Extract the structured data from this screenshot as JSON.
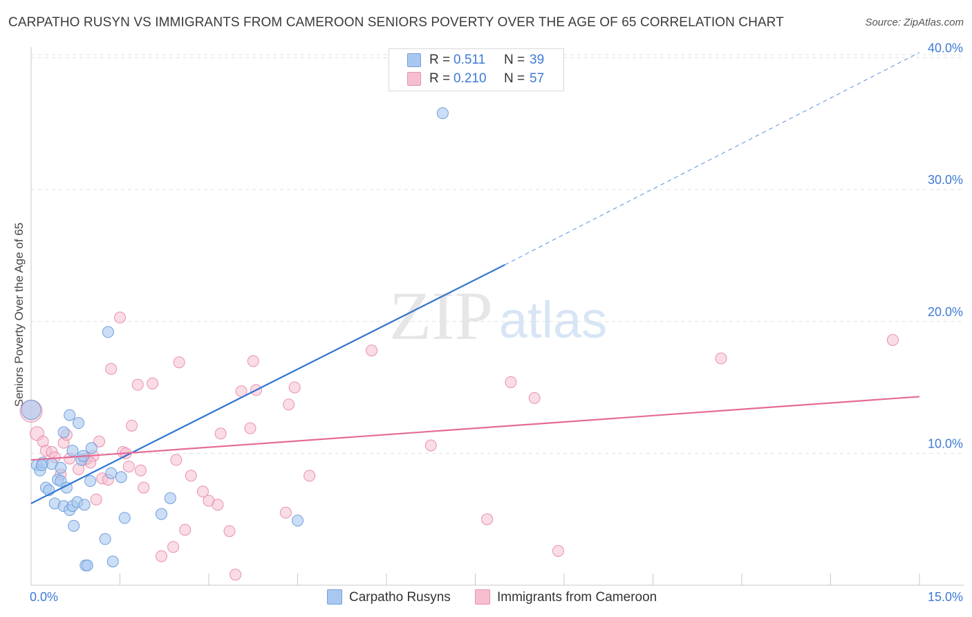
{
  "header": {
    "title": "CARPATHO RUSYN VS IMMIGRANTS FROM CAMEROON SENIORS POVERTY OVER THE AGE OF 65 CORRELATION CHART",
    "source": "Source: ZipAtlas.com"
  },
  "watermark": {
    "zip": "ZIP",
    "atlas": "atlas"
  },
  "legend": {
    "series1": {
      "r_label": "R =",
      "r_value": "0.511",
      "n_label": "N =",
      "n_value": "39"
    },
    "series2": {
      "r_label": "R =",
      "r_value": "0.210",
      "n_label": "N =",
      "n_value": "57"
    }
  },
  "bottom_legend": {
    "series1": "Carpatho Rusyns",
    "series2": "Immigrants from Cameroon"
  },
  "colors": {
    "blue_fill": "#a9c8f0",
    "blue_stroke": "#6f9fdb",
    "blue_line": "#2f74d0",
    "pink_fill": "#f6bfd0",
    "pink_stroke": "#e890ae",
    "pink_line": "#e46b96",
    "tick_label": "#3d7ad6",
    "grid": "#e0e0e0"
  },
  "chart_data": {
    "type": "scatter",
    "title": "CARPATHO RUSYN VS IMMIGRANTS FROM CAMEROON SENIORS POVERTY OVER THE AGE OF 65 CORRELATION CHART",
    "xlabel": "",
    "ylabel": "Seniors Poverty Over the Age of 65",
    "xlim": [
      0,
      15
    ],
    "ylim": [
      0,
      40.5
    ],
    "x_tick_labels": [
      {
        "value": 0,
        "label": "0.0%"
      },
      {
        "value": 15,
        "label": "15.0%"
      }
    ],
    "y_tick_labels": [
      {
        "value": 10,
        "label": "10.0%"
      },
      {
        "value": 20,
        "label": "20.0%"
      },
      {
        "value": 30,
        "label": "30.0%"
      },
      {
        "value": 40,
        "label": "40.0%"
      }
    ],
    "x_minor_ticks": [
      0,
      1.5,
      3,
      4.5,
      6,
      7.5,
      9,
      10.5,
      12,
      13.5,
      15
    ],
    "grid": true,
    "series": [
      {
        "name": "Carpatho Rusyns",
        "r": 0.511,
        "n": 39,
        "trend": {
          "x0": 0,
          "y0": 6.2,
          "x1": 8.0,
          "y1": 24.3,
          "dash_to_x": 15,
          "dash_to_y": 40.4
        },
        "points": [
          [
            0.0,
            13.3,
            14
          ],
          [
            0.1,
            9.1,
            8
          ],
          [
            0.15,
            8.7,
            8
          ],
          [
            0.2,
            9.3,
            8
          ],
          [
            0.25,
            7.4,
            8
          ],
          [
            0.3,
            7.2,
            8
          ],
          [
            0.35,
            9.2,
            8
          ],
          [
            0.4,
            6.2,
            8
          ],
          [
            0.45,
            8.0,
            8
          ],
          [
            0.5,
            8.9,
            8
          ],
          [
            0.5,
            7.9,
            8
          ],
          [
            0.55,
            6.0,
            8
          ],
          [
            0.55,
            11.6,
            8
          ],
          [
            0.6,
            7.4,
            8
          ],
          [
            0.65,
            5.7,
            8
          ],
          [
            0.65,
            12.9,
            8
          ],
          [
            0.7,
            10.2,
            8
          ],
          [
            0.7,
            6.0,
            8
          ],
          [
            0.72,
            4.5,
            8
          ],
          [
            0.78,
            6.3,
            8
          ],
          [
            0.8,
            12.3,
            8
          ],
          [
            0.85,
            9.5,
            8
          ],
          [
            0.88,
            9.8,
            8
          ],
          [
            0.9,
            6.1,
            8
          ],
          [
            0.92,
            1.5,
            8
          ],
          [
            0.95,
            1.5,
            8
          ],
          [
            1.0,
            7.9,
            8
          ],
          [
            1.02,
            10.4,
            8
          ],
          [
            1.25,
            3.5,
            8
          ],
          [
            1.3,
            19.2,
            8
          ],
          [
            1.35,
            8.5,
            8
          ],
          [
            1.38,
            1.8,
            8
          ],
          [
            1.52,
            8.2,
            8
          ],
          [
            1.58,
            5.1,
            8
          ],
          [
            2.2,
            5.4,
            8
          ],
          [
            2.35,
            6.6,
            8
          ],
          [
            4.5,
            4.9,
            8
          ],
          [
            6.95,
            35.8,
            8
          ],
          [
            0.18,
            9.1,
            8
          ]
        ]
      },
      {
        "name": "Immigrants from Cameroon",
        "r": 0.21,
        "n": 57,
        "trend": {
          "x0": 0,
          "y0": 9.5,
          "x1": 15,
          "y1": 14.3
        },
        "points": [
          [
            0.0,
            13.2,
            16
          ],
          [
            0.1,
            11.5,
            10
          ],
          [
            0.2,
            10.9,
            8
          ],
          [
            0.25,
            10.2,
            8
          ],
          [
            0.35,
            10.1,
            8
          ],
          [
            0.4,
            9.7,
            8
          ],
          [
            0.5,
            8.4,
            8
          ],
          [
            0.55,
            10.8,
            8
          ],
          [
            0.6,
            11.4,
            8
          ],
          [
            0.65,
            9.6,
            8
          ],
          [
            0.8,
            8.8,
            8
          ],
          [
            0.9,
            9.5,
            8
          ],
          [
            0.95,
            9.6,
            8
          ],
          [
            1.05,
            9.8,
            8
          ],
          [
            1.1,
            6.5,
            8
          ],
          [
            1.15,
            10.9,
            8
          ],
          [
            1.2,
            8.1,
            8
          ],
          [
            1.3,
            8.0,
            8
          ],
          [
            1.35,
            16.4,
            8
          ],
          [
            1.5,
            20.3,
            8
          ],
          [
            1.55,
            10.1,
            8
          ],
          [
            1.6,
            10.0,
            8
          ],
          [
            1.65,
            9.0,
            8
          ],
          [
            1.7,
            12.1,
            8
          ],
          [
            1.8,
            15.2,
            8
          ],
          [
            1.85,
            8.7,
            8
          ],
          [
            1.9,
            7.4,
            8
          ],
          [
            2.05,
            15.3,
            8
          ],
          [
            2.2,
            2.2,
            8
          ],
          [
            2.4,
            2.9,
            8
          ],
          [
            2.45,
            9.5,
            8
          ],
          [
            2.5,
            16.9,
            8
          ],
          [
            2.6,
            4.2,
            8
          ],
          [
            2.7,
            8.3,
            8
          ],
          [
            2.9,
            7.1,
            8
          ],
          [
            3.0,
            6.4,
            8
          ],
          [
            3.15,
            6.1,
            8
          ],
          [
            3.2,
            11.5,
            8
          ],
          [
            3.35,
            4.1,
            8
          ],
          [
            3.45,
            0.8,
            8
          ],
          [
            3.55,
            14.7,
            8
          ],
          [
            3.7,
            11.9,
            8
          ],
          [
            3.75,
            17.0,
            8
          ],
          [
            3.8,
            14.8,
            8
          ],
          [
            4.3,
            5.5,
            8
          ],
          [
            4.35,
            13.7,
            8
          ],
          [
            4.45,
            15.0,
            8
          ],
          [
            4.7,
            8.3,
            8
          ],
          [
            5.75,
            17.8,
            8
          ],
          [
            6.75,
            10.6,
            8
          ],
          [
            7.7,
            5.0,
            8
          ],
          [
            8.1,
            15.4,
            8
          ],
          [
            8.5,
            14.2,
            8
          ],
          [
            8.9,
            2.6,
            8
          ],
          [
            11.65,
            17.2,
            8
          ],
          [
            14.55,
            18.6,
            8
          ],
          [
            1.0,
            9.3,
            8
          ]
        ]
      }
    ]
  }
}
